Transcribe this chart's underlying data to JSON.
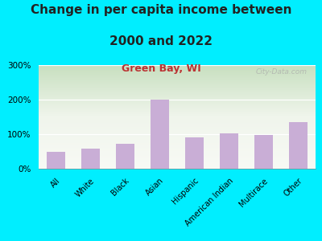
{
  "title_line1": "Change in per capita income between",
  "title_line2": "2000 and 2022",
  "subtitle": "Green Bay, WI",
  "categories": [
    "All",
    "White",
    "Black",
    "Asian",
    "Hispanic",
    "American Indian",
    "Multirace",
    "Other"
  ],
  "values": [
    50,
    57,
    72,
    200,
    90,
    103,
    97,
    135
  ],
  "bar_color": "#c9aed6",
  "background_outer": "#00eeff",
  "chart_bg_left": "#ddeedd",
  "chart_bg_right": "#f5f8f0",
  "title_fontsize": 11,
  "subtitle_fontsize": 9,
  "subtitle_color": "#bb3333",
  "tick_label_fontsize": 7,
  "ytick_fontsize": 7.5,
  "ylim": [
    0,
    300
  ],
  "yticks": [
    0,
    100,
    200,
    300
  ],
  "watermark": "City-Data.com",
  "watermark_color": "#aaaaaa"
}
